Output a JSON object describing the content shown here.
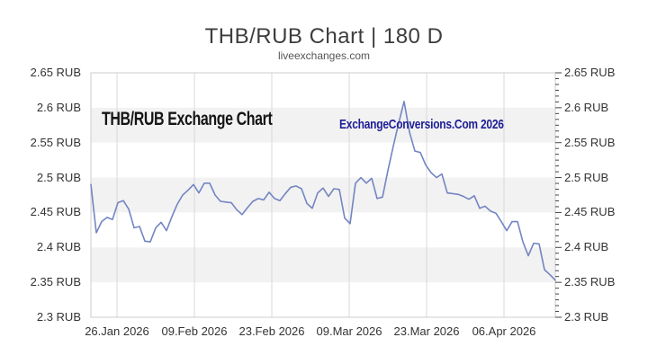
{
  "page": {
    "title": "THB/RUB Chart | 180 D",
    "subtitle": "liveexchanges.com"
  },
  "watermarks": {
    "left": "THB/RUB Exchange Chart",
    "right": "ExchangeConversions.Com 2026"
  },
  "colors": {
    "line": "#7385C2",
    "band_gray": "#F2F2F2",
    "band_white": "#FFFFFF",
    "grid": "#D8D8D8",
    "frame": "#CCCCCC",
    "tick": "#444444",
    "title_text": "#3D3D3D",
    "subtitle_text": "#555555",
    "axis_text": "#333333",
    "watermark_left_text": "#151515",
    "watermark_right_text": "#1E1E96"
  },
  "chart_data": {
    "type": "line",
    "title": "THB/RUB Chart | 180 D",
    "subtitle": "liveexchanges.com",
    "xlabel": "",
    "ylabel": "",
    "y_unit": "RUB",
    "ylim": [
      2.3,
      2.65
    ],
    "y_tick_values": [
      2.65,
      2.6,
      2.55,
      2.5,
      2.45,
      2.4,
      2.35,
      2.3
    ],
    "y_tick_labels": [
      "2.65 RUB",
      "2.6 RUB",
      "2.55 RUB",
      "2.5 RUB",
      "2.45 RUB",
      "2.4 RUB",
      "2.35 RUB",
      "2.3 RUB"
    ],
    "x_tick_labels": [
      "26.Jan 2026",
      "09.Feb 2026",
      "23.Feb 2026",
      "09.Mar 2026",
      "23.Mar 2026",
      "06.Apr 2026"
    ],
    "x_tick_interval_days": 14,
    "grid": "alternating-horizontal-bands",
    "legend": "none",
    "series": [
      {
        "name": "THB/RUB",
        "color": "#7385C2",
        "values": [
          2.49,
          2.421,
          2.437,
          2.443,
          2.44,
          2.464,
          2.467,
          2.455,
          2.428,
          2.43,
          2.409,
          2.408,
          2.428,
          2.436,
          2.424,
          2.444,
          2.462,
          2.475,
          2.482,
          2.49,
          2.478,
          2.492,
          2.492,
          2.475,
          2.466,
          2.465,
          2.464,
          2.454,
          2.447,
          2.457,
          2.466,
          2.47,
          2.468,
          2.479,
          2.47,
          2.467,
          2.477,
          2.486,
          2.488,
          2.484,
          2.463,
          2.456,
          2.478,
          2.485,
          2.473,
          2.484,
          2.483,
          2.442,
          2.434,
          2.492,
          2.5,
          2.492,
          2.499,
          2.47,
          2.472,
          2.51,
          2.545,
          2.578,
          2.609,
          2.565,
          2.538,
          2.536,
          2.518,
          2.507,
          2.5,
          2.505,
          2.478,
          2.477,
          2.476,
          2.473,
          2.469,
          2.474,
          2.456,
          2.459,
          2.452,
          2.449,
          2.437,
          2.424,
          2.437,
          2.437,
          2.408,
          2.388,
          2.406,
          2.405,
          2.368,
          2.361,
          2.353
        ]
      }
    ]
  }
}
